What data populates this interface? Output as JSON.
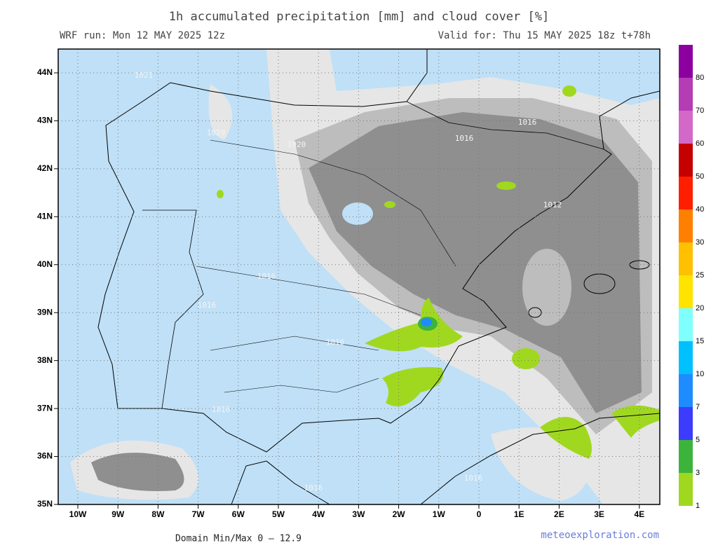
{
  "title": "1h accumulated precipitation [mm] and cloud cover [%]",
  "run": "WRF run: Mon 12 MAY 2025 12z",
  "valid": "Valid for: Thu 15 MAY 2025 18z  t+78h",
  "lat_labels": [
    "44N",
    "43N",
    "42N",
    "41N",
    "40N",
    "39N",
    "38N",
    "37N",
    "36N",
    "35N"
  ],
  "lon_labels": [
    "10W",
    "9W",
    "8W",
    "7W",
    "6W",
    "5W",
    "4W",
    "3W",
    "2W",
    "1W",
    "0",
    "1E",
    "2E",
    "3E",
    "4E"
  ],
  "colorbar": {
    "labels": [
      "1",
      "3",
      "5",
      "7",
      "10",
      "15",
      "20",
      "25",
      "30",
      "40",
      "50",
      "60",
      "70",
      "80"
    ],
    "colors": [
      "#a0d820",
      "#3cb43c",
      "#3c3cff",
      "#1e8cff",
      "#00c0ff",
      "#80ffff",
      "#ffe400",
      "#ffc000",
      "#ff8000",
      "#ff1e00",
      "#c40000",
      "#d468c8",
      "#b43cb4",
      "#8c00a0"
    ]
  },
  "contour_labels": [
    "1021",
    "1020",
    "1020",
    "1016",
    "1016",
    "1012",
    "1016",
    "1016",
    "1016",
    "1016",
    "1016",
    "1016"
  ],
  "footer": {
    "minmax": "Domain Min/Max 0 — 12.9",
    "brand": "meteoexploration.com"
  }
}
